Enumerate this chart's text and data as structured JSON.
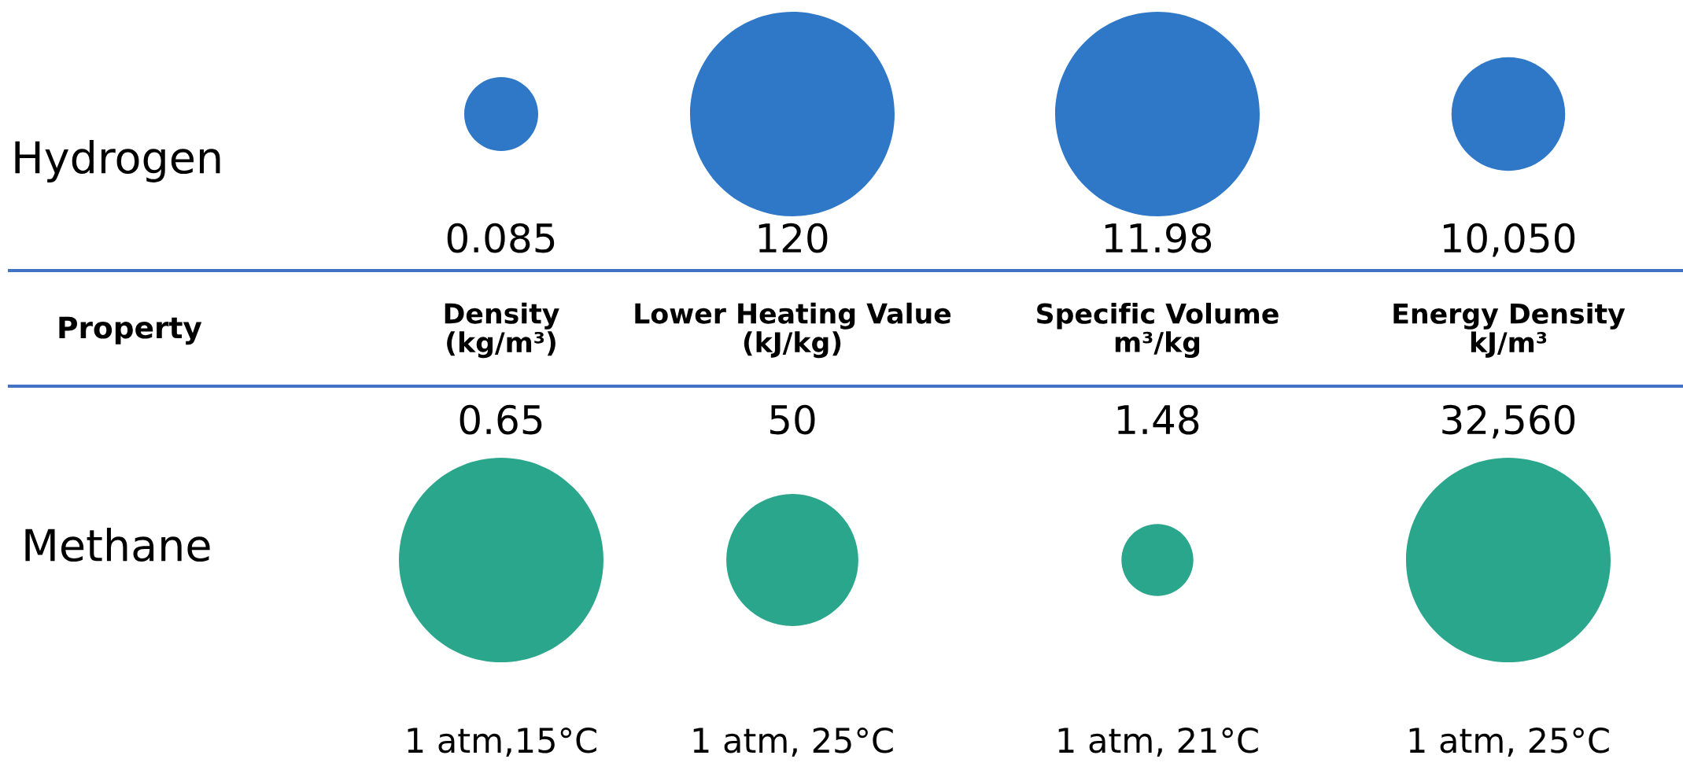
{
  "chart_data": {
    "type": "other",
    "xlabel": "Property",
    "categories": [
      "Density\n(kg/m³)",
      "Lower Heating Value\n(kJ/kg)",
      "Specific Volume\nm³/kg",
      "Energy Density\nkJ/m³"
    ],
    "colors": [
      "#2f78c8",
      "#2aa68c"
    ],
    "series": [
      {
        "name": "Hydrogen",
        "values": [
          0.085,
          120,
          11.98,
          10050
        ],
        "value_labels": [
          "0.085",
          "120",
          "11.98",
          "10,050"
        ]
      },
      {
        "name": "Methane",
        "values": [
          0.65,
          50,
          1.48,
          32560
        ],
        "value_labels": [
          "0.65",
          "50",
          "1.48",
          "32,560"
        ]
      }
    ],
    "annotations": [
      "1 atm,15°C",
      "1 atm, 25°C",
      "1 atm, 21°C",
      "1 atm, 25°C"
    ]
  }
}
